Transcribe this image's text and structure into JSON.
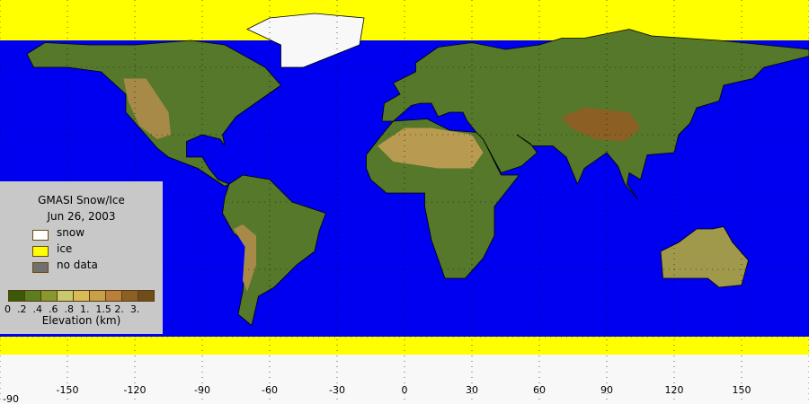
{
  "map": {
    "title": "GMASI Snow/Ice",
    "date": "Jun 26, 2003",
    "projection": "equirectangular",
    "colors": {
      "ocean": "#0000f0",
      "snow": "#f8f8f8",
      "ice": "#ffff00",
      "no_data": "#707070"
    },
    "lon_ticks": [
      "-150",
      "-120",
      "-90",
      "-60",
      "-30",
      "0",
      "30",
      "60",
      "90",
      "120",
      "150"
    ],
    "lat_tick": "-90"
  },
  "legend": {
    "items": [
      {
        "label": "snow",
        "color": "#ffffff"
      },
      {
        "label": "ice",
        "color": "#ffff00"
      },
      {
        "label": "no data",
        "color": "#707070"
      }
    ],
    "elevation_colors": [
      "#3a5a08",
      "#5a7e20",
      "#86982f",
      "#c8c870",
      "#d8bc58",
      "#c8a048",
      "#b8803c",
      "#8c6024",
      "#6e4c1c"
    ],
    "elevation_ticks": "0  .2  .4  .6  .8  1.  1.5 2.  3.",
    "elevation_label": "Elevation (km)"
  }
}
